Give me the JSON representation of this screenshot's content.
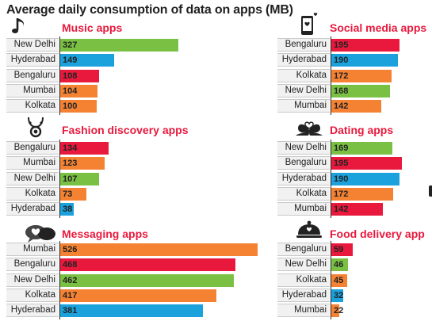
{
  "title": "Average daily consumption of data on apps (MB)",
  "colors": {
    "green": "#7ac143",
    "blue": "#1ba1dc",
    "red": "#e8193d",
    "orange": "#f58233",
    "title": "#e8193d"
  },
  "chart_data": [
    {
      "type": "bar",
      "title": "Music apps",
      "icon": "music-note-icon",
      "categories": [
        "New Delhi",
        "Hyderabad",
        "Bengaluru",
        "Mumbai",
        "Kolkata"
      ],
      "values": [
        327,
        149,
        108,
        104,
        100
      ],
      "colors": [
        "green",
        "blue",
        "red",
        "orange",
        "orange"
      ]
    },
    {
      "type": "bar",
      "title": "Fashion discovery apps",
      "icon": "necklace-icon",
      "categories": [
        "Bengaluru",
        "Mumbai",
        "New Delhi",
        "Kolkata",
        "Hyderabad"
      ],
      "values": [
        134,
        123,
        107,
        73,
        38
      ],
      "colors": [
        "red",
        "orange",
        "green",
        "orange",
        "blue"
      ]
    },
    {
      "type": "bar",
      "title": "Messaging apps",
      "icon": "chat-heart-icon",
      "categories": [
        "Mumbai",
        "Bengaluru",
        "New Delhi",
        "Kolkata",
        "Hyderabad"
      ],
      "values": [
        526,
        468,
        462,
        417,
        381
      ],
      "colors": [
        "orange",
        "red",
        "green",
        "orange",
        "blue"
      ]
    },
    {
      "type": "bar",
      "title": "Social media apps",
      "icon": "phone-heart-icon",
      "categories": [
        "Bengaluru",
        "Hyderabad",
        "Kolkata",
        "New Delhi",
        "Mumbai"
      ],
      "values": [
        195,
        190,
        172,
        168,
        142
      ],
      "colors": [
        "red",
        "blue",
        "orange",
        "green",
        "orange"
      ]
    },
    {
      "type": "bar",
      "title": "Dating apps",
      "icon": "swans-heart-icon",
      "categories": [
        "New Delhi",
        "Bengaluru",
        "Hyderabad",
        "Kolkata",
        "Mumbai"
      ],
      "values": [
        169,
        195,
        190,
        172,
        142
      ],
      "colors": [
        "green",
        "red",
        "blue",
        "orange",
        "red"
      ]
    },
    {
      "type": "bar",
      "title": "Food delivery app",
      "icon": "food-cloche-icon",
      "categories": [
        "Bengaluru",
        "New Delhi",
        "Kolkata",
        "Hyderabad",
        "Mumbai"
      ],
      "values": [
        59,
        46,
        45,
        32,
        22
      ],
      "colors": [
        "red",
        "green",
        "orange",
        "blue",
        "orange"
      ]
    }
  ]
}
